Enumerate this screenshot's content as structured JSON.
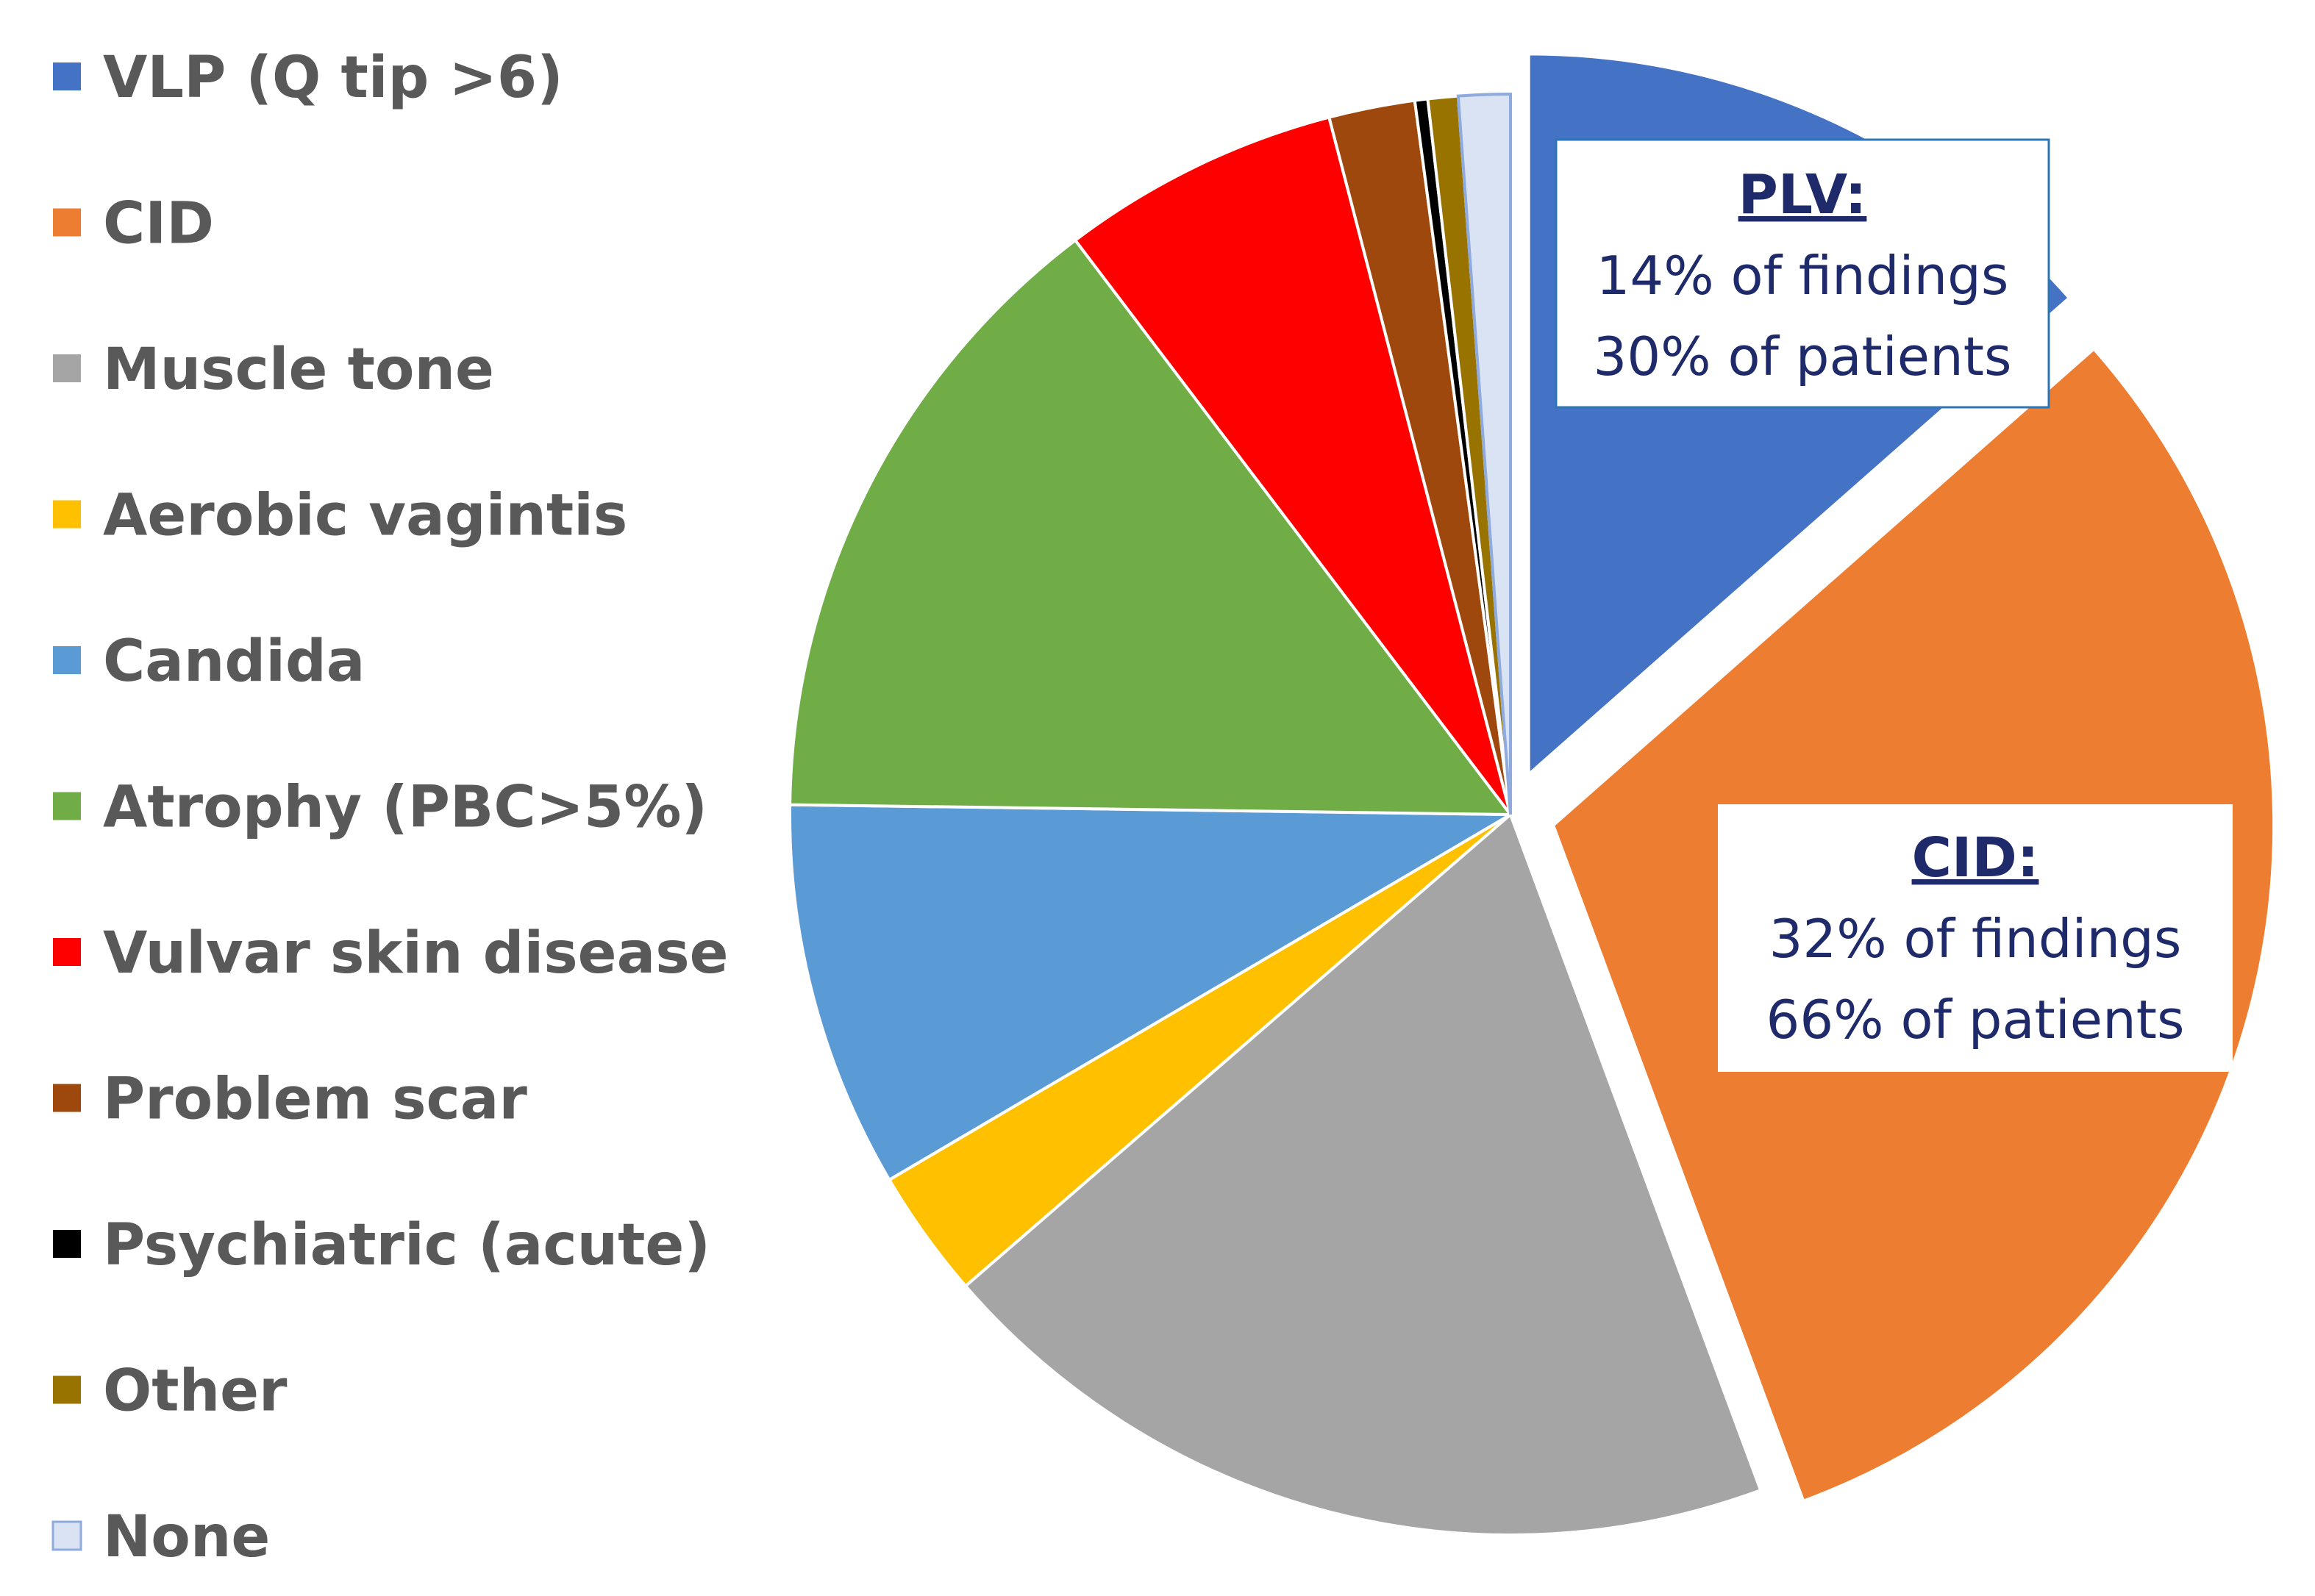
{
  "chart_data": {
    "type": "pie",
    "title": "",
    "categories": [
      "VLP (Q tip >6)",
      "CID",
      "Muscle tone",
      "Aerobic vagintis",
      "Candida",
      "Atrophy (PBC>5%)",
      "Vulvar skin disease",
      "Problem scar",
      "Psychiatric (acute)",
      "Other",
      "None"
    ],
    "values": [
      14,
      32,
      20,
      3,
      9,
      15,
      6.5,
      2,
      0.3,
      0.7,
      1.2
    ],
    "colors": [
      "#4472C4",
      "#ED7D31",
      "#A5A5A5",
      "#FFC000",
      "#5B9BD5",
      "#70AD47",
      "#FF0000",
      "#9E480E",
      "#000000",
      "#997300",
      "#DAE3F3"
    ],
    "exploded": [
      true,
      true,
      false,
      false,
      false,
      false,
      false,
      false,
      false,
      false,
      false
    ],
    "legend": "left",
    "annotations": [
      {
        "slice": "VLP (Q tip >6)",
        "title": "PLV:",
        "line1": "14% of findings",
        "line2": "30% of patients"
      },
      {
        "slice": "CID",
        "title": "CID:",
        "line1": "32% of findings",
        "line2": "66% of patients"
      }
    ]
  }
}
